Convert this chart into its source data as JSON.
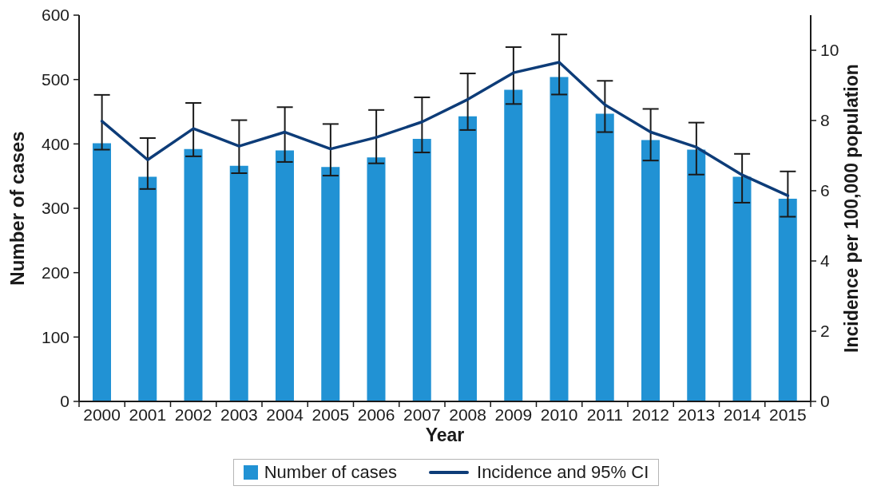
{
  "chart_data": {
    "type": "bar",
    "xlabel": "Year",
    "ylabel": "Number of cases",
    "y2label": "Incidence per 100,000 population",
    "categories": [
      "2000",
      "2001",
      "2002",
      "2003",
      "2004",
      "2005",
      "2006",
      "2007",
      "2008",
      "2009",
      "2010",
      "2011",
      "2012",
      "2013",
      "2014",
      "2015"
    ],
    "series": [
      {
        "name": "Number of cases",
        "color": "#2192d4",
        "values": [
          401,
          349,
          392,
          366,
          390,
          364,
          379,
          408,
          443,
          484,
          504,
          447,
          406,
          391,
          349,
          315
        ]
      },
      {
        "name": "Incidence and 95% CI",
        "type": "line",
        "axis": "y2",
        "color": "#0d3c78",
        "values": [
          7.98,
          6.88,
          7.77,
          7.27,
          7.67,
          7.19,
          7.52,
          7.96,
          8.6,
          9.36,
          9.66,
          8.45,
          7.67,
          7.24,
          6.45,
          5.86
        ],
        "errors": [
          [
            7.17,
            8.73
          ],
          [
            6.05,
            7.5
          ],
          [
            6.98,
            8.5
          ],
          [
            6.5,
            8.01
          ],
          [
            6.82,
            8.38
          ],
          [
            6.43,
            7.9
          ],
          [
            6.78,
            8.3
          ],
          [
            7.09,
            8.66
          ],
          [
            7.73,
            9.34
          ],
          [
            8.47,
            10.09
          ],
          [
            8.74,
            10.45
          ],
          [
            7.67,
            9.13
          ],
          [
            6.86,
            8.33
          ],
          [
            6.46,
            7.94
          ],
          [
            5.66,
            7.05
          ],
          [
            5.26,
            6.55
          ]
        ]
      }
    ],
    "ylim": [
      0,
      600
    ],
    "yticks": [
      0,
      100,
      200,
      300,
      400,
      500,
      600
    ],
    "y2lim": [
      0,
      11
    ],
    "y2ticks": [
      0,
      2,
      4,
      6,
      8,
      10
    ],
    "legend": "bottom",
    "marker": "none"
  }
}
